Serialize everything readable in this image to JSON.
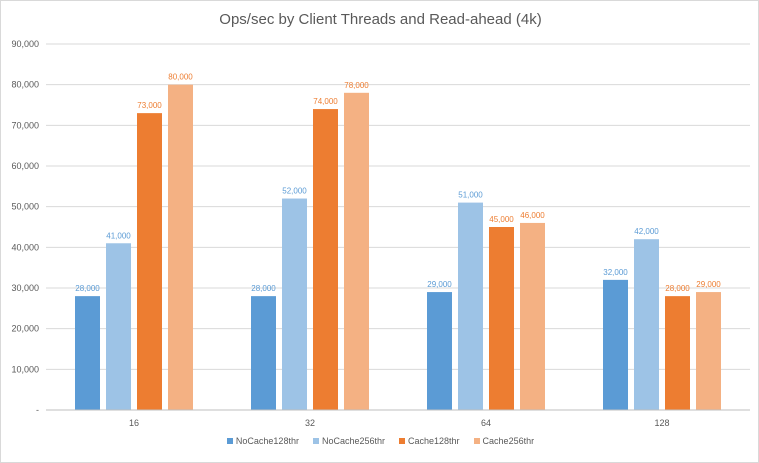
{
  "chart_data": {
    "type": "bar",
    "title": "Ops/sec by Client Threads and Read-ahead (4k)",
    "xlabel": "",
    "ylabel": "",
    "categories": [
      "16",
      "32",
      "64",
      "128"
    ],
    "series": [
      {
        "name": "NoCache128thr",
        "color": "#5b9bd5",
        "labelColor": "#5b9bd5",
        "values": [
          28000,
          28000,
          29000,
          32000
        ],
        "labels": [
          "28,000",
          "28,000",
          "29,000",
          "32,000"
        ]
      },
      {
        "name": "NoCache256thr",
        "color": "#9dc3e6",
        "labelColor": "#5b9bd5",
        "values": [
          41000,
          52000,
          51000,
          42000
        ],
        "labels": [
          "41,000",
          "52,000",
          "51,000",
          "42,000"
        ]
      },
      {
        "name": "Cache128thr",
        "color": "#ed7d31",
        "labelColor": "#ed7d31",
        "values": [
          73000,
          74000,
          45000,
          28000
        ],
        "labels": [
          "73,000",
          "74,000",
          "45,000",
          "28,000"
        ]
      },
      {
        "name": "Cache256thr",
        "color": "#f4b183",
        "labelColor": "#ed7d31",
        "values": [
          80000,
          78000,
          46000,
          29000
        ],
        "labels": [
          "80,000",
          "78,000",
          "46,000",
          "29,000"
        ]
      }
    ],
    "ylim": [
      0,
      90000
    ],
    "yticks": [
      0,
      10000,
      20000,
      30000,
      40000,
      50000,
      60000,
      70000,
      80000,
      90000
    ],
    "ytick_labels": [
      "-",
      "10,000",
      "20,000",
      "30,000",
      "40,000",
      "50,000",
      "60,000",
      "70,000",
      "80,000",
      "90,000"
    ],
    "grid": true,
    "legend_position": "bottom"
  }
}
